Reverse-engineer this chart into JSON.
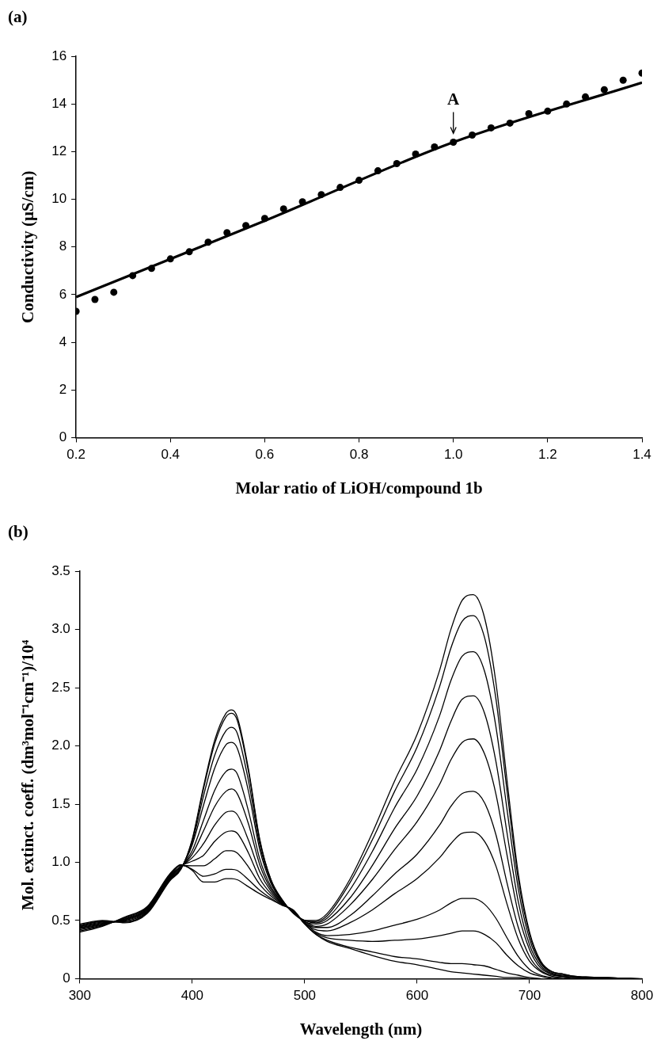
{
  "chart_data": [
    {
      "type": "scatter",
      "title": "(a)",
      "xlabel": "Molar ratio of LiOH/compound 1b",
      "ylabel": "Conductivity (µS/cm)",
      "series": [
        {
          "type": "scatter",
          "color": "#000000",
          "x": [
            0.2,
            0.24,
            0.28,
            0.32,
            0.36,
            0.4,
            0.44,
            0.48,
            0.52,
            0.56,
            0.6,
            0.64,
            0.68,
            0.72,
            0.76,
            0.8,
            0.84,
            0.88,
            0.92,
            0.96,
            1.0,
            1.04,
            1.08,
            1.12,
            1.16,
            1.2,
            1.24,
            1.28,
            1.32,
            1.36,
            1.4
          ],
          "values": [
            5.3,
            5.8,
            6.1,
            6.8,
            7.1,
            7.5,
            7.8,
            8.2,
            8.6,
            8.9,
            9.2,
            9.6,
            9.9,
            10.2,
            10.5,
            10.8,
            11.2,
            11.5,
            11.9,
            12.2,
            12.4,
            12.7,
            13.0,
            13.2,
            13.6,
            13.7,
            14.0,
            14.3,
            14.6,
            15.0,
            15.3
          ]
        },
        {
          "type": "line",
          "marker": "none",
          "color": "#000000",
          "x": [
            0.2,
            0.6,
            1.0,
            1.4
          ],
          "values": [
            5.9,
            9.1,
            12.4,
            14.9
          ]
        }
      ],
      "xlim": [
        0.2,
        1.4
      ],
      "xticks": [
        0.2,
        0.4,
        0.6,
        0.8,
        {
          "value": 1,
          "label": "1.0"
        },
        1.2,
        1.4
      ],
      "ylim": [
        0,
        16
      ],
      "yticks": [
        0,
        2,
        4,
        6,
        8,
        10,
        12,
        14,
        16
      ],
      "annotations": [
        {
          "text": "A",
          "x": 1.0,
          "y": 12.4
        }
      ],
      "grid": false,
      "legend": false,
      "marker": "circle"
    },
    {
      "type": "line",
      "title": "(b)",
      "xlabel": "Wavelength (nm)",
      "ylabel": "Mol. extinct. coeff. (dm³mol⁻¹cm⁻¹)/10⁴",
      "x": [
        300,
        320,
        340,
        360,
        380,
        390,
        400,
        410,
        420,
        430,
        435,
        440,
        450,
        460,
        470,
        480,
        490,
        500,
        510,
        520,
        540,
        560,
        580,
        600,
        620,
        630,
        640,
        650,
        660,
        670,
        680,
        690,
        700,
        710,
        720,
        730,
        740,
        750,
        760,
        770,
        780,
        790,
        800
      ],
      "series": [
        {
          "color": "#000000",
          "values": [
            0.47,
            0.5,
            0.48,
            0.56,
            0.84,
            0.94,
            1.2,
            1.65,
            2.05,
            2.28,
            2.31,
            2.25,
            1.8,
            1.2,
            0.85,
            0.68,
            0.56,
            0.5,
            0.5,
            0.56,
            0.85,
            1.25,
            1.7,
            2.1,
            2.65,
            3.0,
            3.25,
            3.3,
            3.1,
            2.55,
            1.7,
            0.9,
            0.4,
            0.15,
            0.06,
            0.04,
            0.02,
            0.015,
            0.01,
            0.01,
            0.005,
            0.005,
            0
          ]
        },
        {
          "color": "#000000",
          "values": [
            0.46,
            0.495,
            0.485,
            0.566,
            0.846,
            0.944,
            1.19,
            1.63,
            2.02,
            2.25,
            2.28,
            2.22,
            1.78,
            1.19,
            0.85,
            0.675,
            0.563,
            0.5,
            0.49,
            0.54,
            0.82,
            1.19,
            1.61,
            1.99,
            2.51,
            2.84,
            3.07,
            3.12,
            2.93,
            2.41,
            1.61,
            0.85,
            0.38,
            0.14,
            0.06,
            0.04,
            0.02,
            0.015,
            0.01,
            0.01,
            0.005,
            0,
            null
          ]
        },
        {
          "color": "#000000",
          "values": [
            0.455,
            0.49,
            0.49,
            0.572,
            0.852,
            0.948,
            1.17,
            1.57,
            1.92,
            2.13,
            2.16,
            2.11,
            1.7,
            1.15,
            0.83,
            0.67,
            0.566,
            0.5,
            0.48,
            0.52,
            0.76,
            1.09,
            1.47,
            1.8,
            2.26,
            2.56,
            2.77,
            2.81,
            2.64,
            2.17,
            1.45,
            0.77,
            0.34,
            0.13,
            0.05,
            0.03,
            0.02,
            0.01,
            0.01,
            0.005,
            0,
            null,
            null
          ]
        },
        {
          "color": "#000000",
          "values": [
            0.45,
            0.485,
            0.495,
            0.578,
            0.858,
            0.952,
            1.15,
            1.49,
            1.81,
            2.01,
            2.03,
            1.98,
            1.61,
            1.11,
            0.82,
            0.665,
            0.569,
            0.49,
            0.47,
            0.5,
            0.69,
            0.97,
            1.29,
            1.57,
            1.96,
            2.21,
            2.4,
            2.43,
            2.28,
            1.87,
            1.25,
            0.66,
            0.29,
            0.11,
            0.04,
            0.02,
            0.01,
            0.01,
            0.005,
            0,
            null,
            null,
            null
          ]
        },
        {
          "color": "#000000",
          "values": [
            0.445,
            0.48,
            0.5,
            0.584,
            0.864,
            0.956,
            1.1,
            1.36,
            1.62,
            1.78,
            1.8,
            1.76,
            1.44,
            1.03,
            0.79,
            0.66,
            0.572,
            0.49,
            0.45,
            0.47,
            0.63,
            0.85,
            1.11,
            1.35,
            1.67,
            1.88,
            2.03,
            2.06,
            1.93,
            1.59,
            1.06,
            0.56,
            0.25,
            0.09,
            0.04,
            0.02,
            0.01,
            0.005,
            0,
            null,
            null,
            null,
            null
          ]
        },
        {
          "color": "#000000",
          "values": [
            0.44,
            0.475,
            0.505,
            0.59,
            0.87,
            0.96,
            1.07,
            1.27,
            1.48,
            1.61,
            1.63,
            1.59,
            1.33,
            0.98,
            0.77,
            0.655,
            0.575,
            0.48,
            0.44,
            0.44,
            0.54,
            0.71,
            0.9,
            1.07,
            1.32,
            1.48,
            1.59,
            1.61,
            1.51,
            1.24,
            0.82,
            0.44,
            0.19,
            0.07,
            0.03,
            0.02,
            0.01,
            0,
            null,
            null,
            null,
            null,
            null
          ]
        },
        {
          "color": "#000000",
          "values": [
            0.435,
            0.47,
            0.51,
            0.596,
            0.876,
            0.964,
            1.04,
            1.16,
            1.32,
            1.43,
            1.44,
            1.41,
            1.19,
            0.92,
            0.75,
            0.65,
            0.578,
            0.48,
            0.42,
            0.41,
            0.48,
            0.59,
            0.73,
            0.86,
            1.04,
            1.16,
            1.25,
            1.26,
            1.18,
            0.97,
            0.64,
            0.34,
            0.15,
            0.06,
            0.02,
            0.01,
            0,
            null,
            null,
            null,
            null,
            null,
            null
          ]
        },
        {
          "color": "#000000",
          "values": [
            0.43,
            0.465,
            0.515,
            0.602,
            0.882,
            0.968,
            1.01,
            1.06,
            1.18,
            1.26,
            1.27,
            1.25,
            1.08,
            0.86,
            0.73,
            0.645,
            0.581,
            0.48,
            0.4,
            0.37,
            0.38,
            0.41,
            0.46,
            0.51,
            0.59,
            0.65,
            0.69,
            0.69,
            0.64,
            0.52,
            0.35,
            0.19,
            0.08,
            0.03,
            0.01,
            0,
            null,
            null,
            null,
            null,
            null,
            null,
            null
          ]
        },
        {
          "color": "#000000",
          "values": [
            0.42,
            0.46,
            0.52,
            0.608,
            0.888,
            0.972,
            0.97,
            0.97,
            1.03,
            1.1,
            1.1,
            1.08,
            0.96,
            0.81,
            0.71,
            0.64,
            0.584,
            0.47,
            0.39,
            0.35,
            0.33,
            0.32,
            0.33,
            0.34,
            0.37,
            0.39,
            0.41,
            0.41,
            0.38,
            0.31,
            0.2,
            0.11,
            0.05,
            0.02,
            0,
            null,
            null,
            null,
            null,
            null,
            null,
            null,
            null
          ]
        },
        {
          "color": "#000000",
          "values": [
            0.41,
            0.455,
            0.525,
            0.614,
            0.894,
            0.976,
            0.94,
            0.88,
            0.9,
            0.94,
            0.94,
            0.93,
            0.85,
            0.76,
            0.69,
            0.635,
            0.587,
            0.47,
            0.38,
            0.33,
            0.27,
            0.23,
            0.19,
            0.17,
            0.14,
            0.13,
            0.13,
            0.12,
            0.11,
            0.08,
            0.05,
            0.03,
            0.01,
            0,
            null,
            null,
            null,
            null,
            null,
            null,
            null,
            null,
            null
          ]
        },
        {
          "color": "#000000",
          "values": [
            0.4,
            0.45,
            0.53,
            0.62,
            0.9,
            0.98,
            0.93,
            0.83,
            0.83,
            0.86,
            0.86,
            0.85,
            0.79,
            0.73,
            0.68,
            0.63,
            0.59,
            0.47,
            0.38,
            0.32,
            0.26,
            0.2,
            0.15,
            0.12,
            0.08,
            0.06,
            0.05,
            0.04,
            0.03,
            0.02,
            0.01,
            0.01,
            0,
            null,
            null,
            null,
            null,
            null,
            null,
            null,
            null,
            null,
            null
          ]
        }
      ],
      "xlim": [
        300,
        800
      ],
      "xticks": [
        300,
        400,
        500,
        600,
        700,
        800
      ],
      "ylim": [
        0,
        3.5
      ],
      "yticks": [
        0,
        0.5,
        {
          "value": 1,
          "label": "1.0"
        },
        1.5,
        {
          "value": 2,
          "label": "2.0"
        },
        2.5,
        {
          "value": 3,
          "label": "3.0"
        },
        3.5
      ],
      "grid": false,
      "legend": false,
      "marker": "none"
    }
  ]
}
